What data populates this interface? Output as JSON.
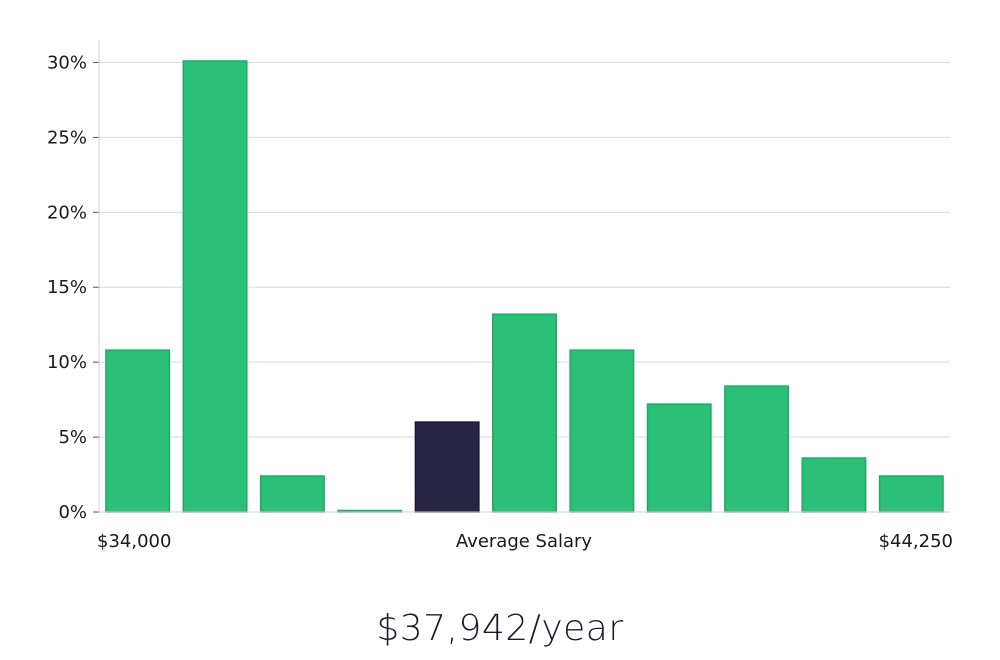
{
  "chart_data": {
    "type": "bar",
    "title": "",
    "xlabel": "",
    "ylabel": "",
    "ylim": [
      0,
      31.5
    ],
    "yticks": [
      0,
      5,
      10,
      15,
      20,
      25,
      30
    ],
    "ytick_suffix": "%",
    "grid": true,
    "x_labels": {
      "left": "$34,000",
      "center": "Average Salary",
      "right": "$44,250"
    },
    "values": [
      10.8,
      30.1,
      2.4,
      0.1,
      6.0,
      13.2,
      10.8,
      7.2,
      8.4,
      3.6,
      2.4
    ],
    "highlight_index": 4,
    "colors": {
      "bar": "#2bbf77",
      "bar_edge": "#22a866",
      "highlight": "#272444",
      "highlight_edge": "#1a1830"
    }
  },
  "salary_text": "$37,942/year"
}
